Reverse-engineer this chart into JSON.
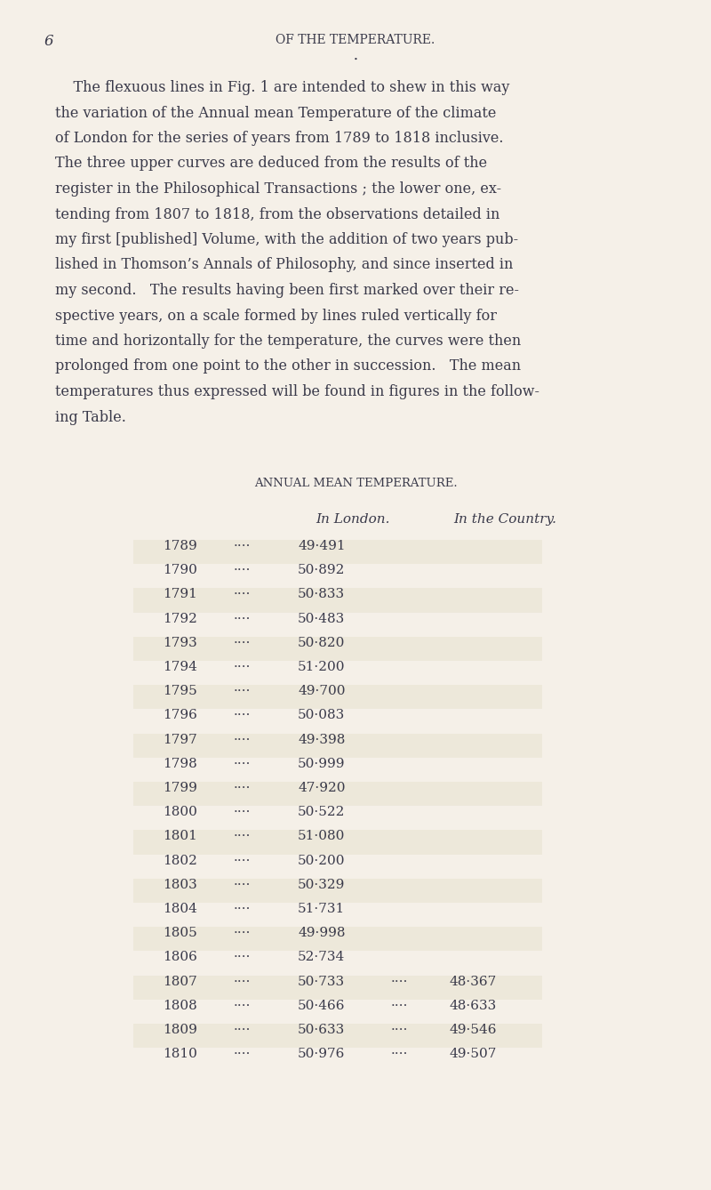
{
  "page_number": "6",
  "header": "OF THE TEMPERATURE.",
  "background_color": "#f5f0e8",
  "text_color": "#3a3a4a",
  "table_title": "ANNUAL MEAN TEMPERATURE.",
  "col_header_london": "In London.",
  "col_header_country": "In the Country.",
  "rows": [
    [
      "1789",
      "49·491",
      "",
      ""
    ],
    [
      "1790",
      "50·892",
      "",
      ""
    ],
    [
      "1791",
      "50·833",
      "",
      ""
    ],
    [
      "1792",
      "50·483",
      "",
      ""
    ],
    [
      "1793",
      "50·820",
      "",
      ""
    ],
    [
      "1794",
      "51·200",
      "",
      ""
    ],
    [
      "1795",
      "49·700",
      "",
      ""
    ],
    [
      "1796",
      "50·083",
      "",
      ""
    ],
    [
      "1797",
      "49·398",
      "",
      ""
    ],
    [
      "1798",
      "50·999",
      "",
      ""
    ],
    [
      "1799",
      "47·920",
      "",
      ""
    ],
    [
      "1800",
      "50·522",
      "",
      ""
    ],
    [
      "1801",
      "51·080",
      "",
      ""
    ],
    [
      "1802",
      "50·200",
      "",
      ""
    ],
    [
      "1803",
      "50·329",
      "",
      ""
    ],
    [
      "1804",
      "51·731",
      "",
      ""
    ],
    [
      "1805",
      "49·998",
      "",
      ""
    ],
    [
      "1806",
      "52·734",
      "",
      ""
    ],
    [
      "1807",
      "50·733",
      "····",
      "48·367"
    ],
    [
      "1808",
      "50·466",
      "····",
      "48·633"
    ],
    [
      "1809",
      "50·633",
      "····",
      "49·546"
    ],
    [
      "1810",
      "50·976",
      "····",
      "49·507"
    ]
  ],
  "paragraph_lines": [
    "    The flexuous lines in Fig. 1 are intended to shew in this way",
    "the variation of the Annual mean Temperature of the climate",
    "of London for the series of years from 1789 to 1818 inclusive.",
    "The three upper curves are deduced from the results of the",
    "register in the Philosophical Transactions ; the lower one, ex-",
    "tending from 1807 to 1818, from the observations detailed in",
    "my first [published] Volume, with the addition of two years pub-",
    "lished in Thomson’s Annals of Philosophy, and since inserted in",
    "my second.   The results having been first marked over their re-",
    "spective years, on a scale formed by lines ruled vertically for",
    "time and horizontally for the temperature, the curves were then",
    "prolonged from one point to the other in succession.   The mean",
    "temperatures thus expressed will be found in figures in the follow-",
    "ing Table."
  ],
  "font_size_header": 10,
  "font_size_body": 11.5,
  "font_size_table": 11,
  "font_size_page_num": 12,
  "row_alternating_colors": [
    "#ede8da",
    "#f5f0e8"
  ],
  "dots": "····"
}
